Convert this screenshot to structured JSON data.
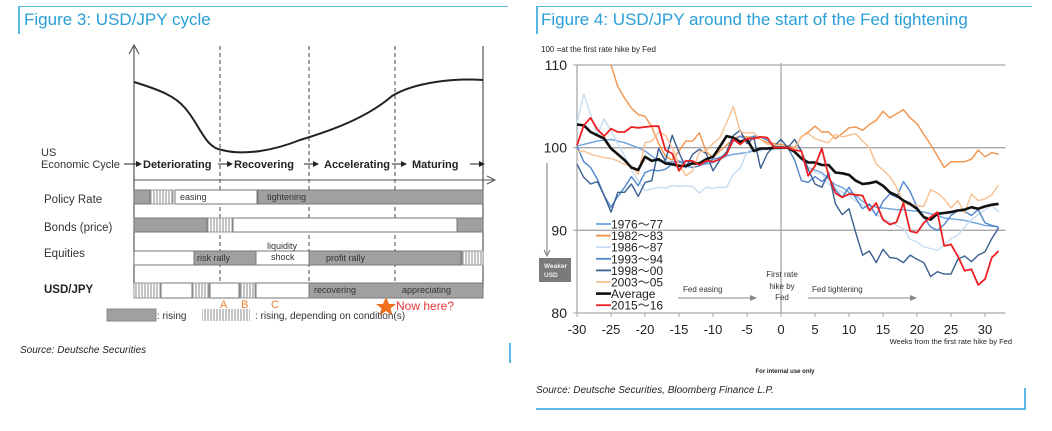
{
  "figure3": {
    "title": "Figure 3: USD/JPY cycle",
    "source": "Source: Deutsche Securities",
    "row_labels": {
      "cycle_line1": "US",
      "cycle_line2": "Economic Cycle",
      "policy_rate": "Policy Rate",
      "bonds": "Bonds (price)",
      "equities": "Equities",
      "usdjpy": "USD/JPY"
    },
    "phases": [
      "Deteriorating",
      "Recovering",
      "Accelerating",
      "Maturing"
    ],
    "bar_labels": {
      "easing": "easing",
      "tightening": "tightening",
      "risk_rally": "risk rally",
      "liquidity_shock_1": "liquidity",
      "liquidity_shock_2": "shock",
      "profit_rally": "profit rally",
      "recovering": "recovering",
      "appreciating": "appreciating"
    },
    "markers": {
      "a": "A",
      "b": "B",
      "c": "C",
      "now": "Now here?"
    },
    "legend": {
      "rising": ": rising",
      "rising_conditional": ": rising, depending on condition(s)"
    },
    "colors": {
      "accent": "#2a9fd8",
      "bar_gray": "#a0a0a0",
      "marker_orange": "#f08030",
      "now_red": "#e8383a"
    }
  },
  "figure4": {
    "title": "Figure 4: USD/JPY around the start of the Fed tightening",
    "source": "Source: Deutsche Securities, Bloomberg Finance L.P.",
    "footer_note": "For internal use only",
    "annotations": {
      "base_note": "100 =at the first rate hike by Fed",
      "weaker_usd_1": "Weaker",
      "weaker_usd_2": "USD",
      "fed_easing": "Fed easing",
      "first_hike_1": "First rate",
      "first_hike_2": "hike by",
      "first_hike_3": "Fed",
      "fed_tightening": "Fed tightening"
    }
  },
  "chart_data": {
    "type": "line",
    "title": "Figure 4: USD/JPY around the start of the Fed tightening",
    "xlabel": "Weeks  from the first rate hike by Fed",
    "ylabel": "100 =at the first rate hike by Fed",
    "xlim": [
      -30,
      33
    ],
    "ylim": [
      80,
      110
    ],
    "xticks": [
      -30,
      -25,
      -20,
      -15,
      -10,
      -5,
      0,
      5,
      10,
      15,
      20,
      25,
      30
    ],
    "yticks": [
      80,
      90,
      100,
      110
    ],
    "grid": "horizontal at 90, 100, 110; vertical at 0",
    "legend_position": "bottom-left",
    "x_start": -30,
    "series": [
      {
        "name": "1976～77",
        "color": "#6fa3dc",
        "width": 1.4,
        "values": [
          100.2,
          100.4,
          100.6,
          100.8,
          100.9,
          101.0,
          100.8,
          100.6,
          100.3,
          100.0,
          99.6,
          99.0,
          98.4,
          98.2,
          98.3,
          98.2,
          98.4,
          98.2,
          98.1,
          98.0,
          98.2,
          98.6,
          99.0,
          99.2,
          99.3,
          99.4,
          99.6,
          99.7,
          99.8,
          99.8,
          99.9,
          100.0,
          99.5,
          98.6,
          97.6,
          97.3,
          97.0,
          96.2,
          95.5,
          95.2,
          94.6,
          94.2,
          93.5,
          93.0,
          92.8,
          92.7,
          92.6,
          92.5,
          92.5,
          92.4,
          92.3,
          92.2,
          92.0,
          91.8,
          91.5,
          91.4,
          91.3,
          91.2,
          91.0,
          90.8,
          90.6,
          90.5,
          90.4
        ]
      },
      {
        "name": "1982～83",
        "color": "#f0924a",
        "width": 1.4,
        "values": [
          null,
          null,
          null,
          null,
          null,
          110.0,
          107.4,
          106.0,
          104.8,
          104.0,
          103.8,
          102.5,
          100.5,
          99.0,
          98.5,
          99.6,
          100.8,
          100.8,
          101.8,
          99.5,
          98.8,
          99.6,
          100.3,
          101.1,
          101.4,
          101.3,
          101.3,
          101.0,
          100.6,
          100.5,
          100.4,
          100.2,
          100.0,
          101.3,
          101.9,
          102.6,
          101.9,
          101.9,
          101.1,
          101.7,
          102.4,
          102.5,
          102.1,
          102.8,
          103.3,
          104.4,
          103.6,
          104.1,
          104.6,
          103.6,
          102.9,
          101.6,
          100.4,
          99.0,
          97.6,
          98.3,
          98.3,
          98.3,
          98.6,
          99.7,
          98.9,
          99.4,
          99.2,
          98.6,
          99.9,
          99.6,
          100.2
        ]
      },
      {
        "name": "1986～87",
        "color": "#c6dcf2",
        "width": 1.4,
        "values": [
          103.0,
          106.5,
          104.0,
          101.5,
          103.5,
          102.0,
          100.5,
          99.0,
          97.3,
          96.0,
          94.8,
          95.0,
          95.2,
          95.1,
          95.4,
          95.3,
          95.4,
          95.3,
          94.5,
          95.2,
          95.1,
          95.2,
          95.2,
          96.8,
          97.5,
          99.5,
          99.9,
          99.6,
          100.0,
          99.7,
          100.1,
          100.0,
          99.6,
          98.7,
          97.6,
          97.0,
          96.8,
          95.6,
          95.0,
          94.6,
          94.2,
          93.5,
          93.1,
          92.5,
          92.0,
          91.4,
          91.0,
          90.6,
          90.2,
          88.9,
          88.6,
          88.0,
          87.8,
          87.6,
          88.2,
          89.0,
          89.4,
          90.4,
          91.3,
          91.9,
          92.5,
          93.0,
          92.2
        ]
      },
      {
        "name": "1993～94",
        "color": "#4f86cc",
        "width": 1.4,
        "values": [
          100.2,
          98.3,
          97.6,
          96.2,
          94.2,
          92.8,
          94.1,
          95.2,
          96.5,
          95.4,
          97.0,
          97.3,
          97.2,
          97.4,
          98.0,
          98.4,
          97.8,
          97.6,
          97.8,
          98.2,
          98.6,
          98.8,
          99.3,
          100.8,
          101.4,
          101.0,
          101.4,
          101.3,
          100.9,
          100.3,
          100.1,
          100.0,
          98.5,
          96.0,
          95.8,
          96.5,
          95.9,
          96.5,
          94.9,
          94.0,
          95.2,
          93.9,
          92.6,
          93.2,
          91.8,
          93.5,
          94.4,
          94.0,
          95.9,
          94.7,
          92.8,
          91.6,
          90.4,
          90.0,
          90.7,
          91.8,
          92.4,
          92.3,
          91.8,
          92.5,
          90.9,
          90.6,
          90.4
        ]
      },
      {
        "name": "1998～00",
        "color": "#3a5f92",
        "width": 1.4,
        "values": [
          98.0,
          96.4,
          95.6,
          95.9,
          94.2,
          92.2,
          94.6,
          94.6,
          95.6,
          94.1,
          95.8,
          96.0,
          99.9,
          98.4,
          101.5,
          99.4,
          97.6,
          99.2,
          99.8,
          99.3,
          97.2,
          98.5,
          99.5,
          101.5,
          102.1,
          100.5,
          101.2,
          97.5,
          99.3,
          100.2,
          101.0,
          100.0,
          101.0,
          99.6,
          97.4,
          95.6,
          95.2,
          97.0,
          93.2,
          91.9,
          92.6,
          89.7,
          87.0,
          87.5,
          86.1,
          87.7,
          86.7,
          86.6,
          86.1,
          87.0,
          86.5,
          86.1,
          84.4,
          85.0,
          84.7,
          84.7,
          86.5,
          86.9,
          86.2,
          87.0,
          87.4,
          89.0,
          90.3
        ]
      },
      {
        "name": "2003～05",
        "color": "#f7c090",
        "width": 1.4,
        "values": [
          99.5,
          99.6,
          99.2,
          99.0,
          98.8,
          98.7,
          98.4,
          98.0,
          97.7,
          96.8,
          100.6,
          100.8,
          101.9,
          101.5,
          100.0,
          98.0,
          96.6,
          97.2,
          99.5,
          99.6,
          100.5,
          101.2,
          103.0,
          105.0,
          101.9,
          101.8,
          101.8,
          101.0,
          100.4,
          100.4,
          100.0,
          100.0,
          99.8,
          101.4,
          101.7,
          101.1,
          100.8,
          100.6,
          101.6,
          101.3,
          101.5,
          101.7,
          100.8,
          100.0,
          98.0,
          97.3,
          96.5,
          95.2,
          93.3,
          93.0,
          93.0,
          92.9,
          94.9,
          94.5,
          93.8,
          92.7,
          93.6,
          92.1,
          94.4,
          93.6,
          93.8,
          94.3,
          95.5,
          96.5
        ]
      },
      {
        "name": "Average",
        "color": "#111111",
        "width": 2.6,
        "values": [
          102.8,
          102.7,
          101.9,
          101.5,
          101.1,
          99.9,
          99.2,
          98.5,
          97.6,
          97.3,
          98.9,
          98.4,
          98.6,
          98.1,
          98.0,
          97.8,
          97.8,
          98.1,
          98.1,
          98.6,
          98.9,
          100.1,
          101.4,
          101.2,
          100.7,
          101.0,
          99.6,
          99.9,
          99.9,
          100.0,
          100.0,
          100.0,
          99.5,
          98.7,
          98.2,
          98.2,
          97.9,
          97.9,
          97.0,
          96.9,
          96.7,
          96.0,
          95.6,
          95.7,
          95.9,
          95.4,
          94.6,
          94.2,
          93.6,
          93.2,
          92.6,
          91.6,
          91.3,
          92.0,
          92.1,
          92.2,
          92.4,
          92.5,
          92.8,
          92.6,
          92.9,
          93.1,
          93.2,
          93.3,
          93.8
        ]
      },
      {
        "name": "2015～16",
        "color": "#ee1f24",
        "width": 1.8,
        "values": [
          100.3,
          102.7,
          103.6,
          102.2,
          101.4,
          102.3,
          101.9,
          101.9,
          102.5,
          102.4,
          102.5,
          102.6,
          102.6,
          99.7,
          99.3,
          97.2,
          98.4,
          98.4,
          97.9,
          98.4,
          98.3,
          98.6,
          99.2,
          101.0,
          100.4,
          101.1,
          101.1,
          101.3,
          101.2,
          100.0,
          100.0,
          100.0,
          99.7,
          99.6,
          96.6,
          97.8,
          99.9,
          96.6,
          94.5,
          94.0,
          94.4,
          94.3,
          94.2,
          92.4,
          93.3,
          91.3,
          90.7,
          91.0,
          93.3,
          89.9,
          89.7,
          90.9,
          91.6,
          92.2,
          88.1,
          88.3,
          86.9,
          85.1,
          85.3,
          83.4,
          84.1,
          86.7,
          87.5,
          84.0,
          83.9
        ]
      }
    ]
  }
}
